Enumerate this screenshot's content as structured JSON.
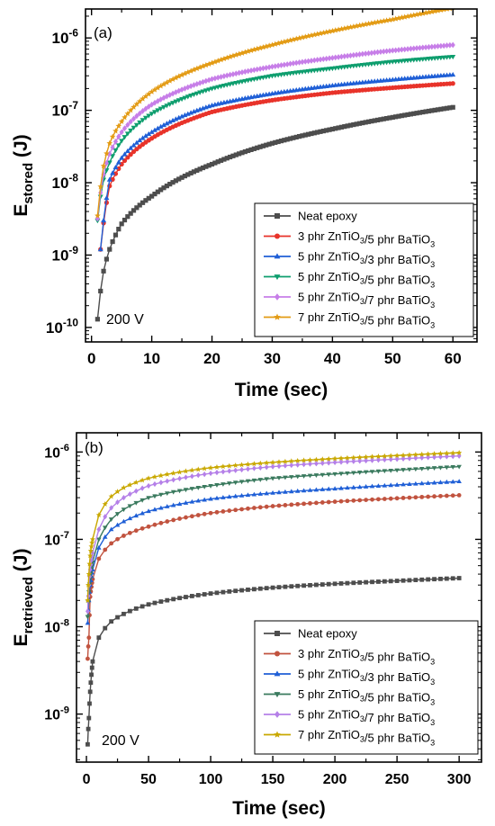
{
  "chart_data": [
    {
      "type": "line",
      "panel_label": "(a)",
      "annotation": "200 V",
      "xlabel": "Time (sec)",
      "ylabel": {
        "base": "E",
        "sub": "stored",
        "unit": " (J)"
      },
      "xlim": [
        -1,
        64
      ],
      "ylim_log10": [
        -10.2,
        -5.6
      ],
      "y_scale": "log",
      "xticks": [
        0,
        10,
        20,
        30,
        40,
        50,
        60
      ],
      "yticks": [
        {
          "exp": -10,
          "label": "10",
          "sup": "-10"
        },
        {
          "exp": -9,
          "label": "10",
          "sup": "-9"
        },
        {
          "exp": -8,
          "label": "10",
          "sup": "-8"
        },
        {
          "exp": -7,
          "label": "10",
          "sup": "-7"
        },
        {
          "exp": -6,
          "label": "10",
          "sup": "-6"
        }
      ],
      "legend_position": "bottom-right",
      "series": [
        {
          "name": "Neat epoxy",
          "color": "#4d4d4d",
          "marker": "square",
          "x": [
            1,
            2,
            3,
            5,
            10,
            20,
            30,
            40,
            50,
            60
          ],
          "y": [
            1.3e-10,
            6e-10,
            1.2e-09,
            2.7e-09,
            6.5e-09,
            1.8e-08,
            3.5e-08,
            5.5e-08,
            8e-08,
            1.1e-07
          ]
        },
        {
          "name": "3 phr ZnTiO3/5 phr BaTiO3",
          "color": "#e8332a",
          "marker": "circle",
          "x": [
            1.5,
            3,
            5,
            10,
            20,
            30,
            40,
            50,
            60
          ],
          "y": [
            1.2e-09,
            9e-09,
            1.8e-08,
            4.1e-08,
            9.5e-08,
            1.38e-07,
            1.75e-07,
            2.05e-07,
            2.35e-07
          ]
        },
        {
          "name": "5 phr ZnTiO3/3 phr BaTiO3",
          "color": "#1f5fd6",
          "marker": "triangle-up",
          "x": [
            1.5,
            3,
            5,
            10,
            20,
            30,
            40,
            50,
            60
          ],
          "y": [
            1.2e-09,
            1.1e-08,
            2.2e-08,
            5e-08,
            1.17e-07,
            1.7e-07,
            2.2e-07,
            2.65e-07,
            3.1e-07
          ]
        },
        {
          "name": "5 phr ZnTiO3/5 phr BaTiO3",
          "color": "#0e9e6e",
          "marker": "triangle-down",
          "x": [
            1,
            2,
            3,
            5,
            10,
            20,
            30,
            40,
            50,
            60
          ],
          "y": [
            3e-09,
            1.1e-08,
            1.9e-08,
            3.8e-08,
            9e-08,
            2e-07,
            3e-07,
            3.8e-07,
            4.7e-07,
            5.5e-07
          ]
        },
        {
          "name": "5 phr ZnTiO3/7 phr BaTiO3",
          "color": "#c77ee8",
          "marker": "diamond",
          "x": [
            1,
            2,
            3,
            5,
            10,
            20,
            30,
            40,
            50,
            60
          ],
          "y": [
            3.2e-09,
            1.3e-08,
            2.5e-08,
            5e-08,
            1.2e-07,
            2.7e-07,
            4e-07,
            5.3e-07,
            6.7e-07,
            8e-07
          ]
        },
        {
          "name": "7 phr ZnTiO3/5 phr BaTiO3",
          "color": "#e39b14",
          "marker": "star",
          "x": [
            1,
            2,
            3,
            5,
            10,
            20,
            30,
            40,
            50,
            60
          ],
          "y": [
            3.5e-09,
            1.7e-08,
            3.5e-08,
            7e-08,
            1.8e-07,
            4.5e-07,
            8e-07,
            1.25e-06,
            1.8e-06,
            2.6e-06
          ]
        }
      ]
    },
    {
      "type": "line",
      "panel_label": "(b)",
      "annotation": "200 V",
      "xlabel": "Time (sec)",
      "ylabel": {
        "base": "E",
        "sub": "retrieved",
        "unit": " (J)"
      },
      "xlim": [
        -8,
        318
      ],
      "ylim_log10": [
        -9.55,
        -5.78
      ],
      "y_scale": "log",
      "xticks": [
        0,
        50,
        100,
        150,
        200,
        250,
        300
      ],
      "yticks": [
        {
          "exp": -9,
          "label": "10",
          "sup": "-9"
        },
        {
          "exp": -8,
          "label": "10",
          "sup": "-8"
        },
        {
          "exp": -7,
          "label": "10",
          "sup": "-7"
        },
        {
          "exp": -6,
          "label": "10",
          "sup": "-6"
        }
      ],
      "legend_position": "bottom-right",
      "series": [
        {
          "name": "Neat epoxy",
          "color": "#4d4d4d",
          "marker": "square",
          "x": [
            1,
            2,
            3,
            5,
            10,
            20,
            30,
            50,
            100,
            150,
            200,
            250,
            300
          ],
          "y": [
            4.5e-10,
            9e-10,
            1.8e-09,
            4e-09,
            7.5e-09,
            1.15e-08,
            1.4e-08,
            1.8e-08,
            2.4e-08,
            2.8e-08,
            3.1e-08,
            3.35e-08,
            3.6e-08
          ]
        },
        {
          "name": "3 phr ZnTiO3/5 phr BaTiO3",
          "color": "#c1533f",
          "marker": "circle",
          "x": [
            1,
            2,
            3,
            5,
            10,
            20,
            30,
            50,
            100,
            150,
            200,
            250,
            300
          ],
          "y": [
            4.3e-09,
            7.5e-09,
            2.2e-08,
            3.5e-08,
            6e-08,
            9e-08,
            1.1e-07,
            1.4e-07,
            2e-07,
            2.4e-07,
            2.7e-07,
            2.95e-07,
            3.2e-07
          ]
        },
        {
          "name": "5 phr ZnTiO3/3 phr BaTiO3",
          "color": "#1f5fd6",
          "marker": "triangle-up",
          "x": [
            1,
            2,
            3,
            5,
            10,
            20,
            30,
            50,
            100,
            150,
            200,
            250,
            300
          ],
          "y": [
            1.1e-08,
            2e-08,
            3e-08,
            4.5e-08,
            8e-08,
            1.3e-07,
            1.6e-07,
            2.1e-07,
            2.9e-07,
            3.4e-07,
            3.8e-07,
            4.2e-07,
            4.6e-07
          ]
        },
        {
          "name": "5 phr ZnTiO3/5 phr BaTiO3",
          "color": "#3a7a5e",
          "marker": "triangle-down",
          "x": [
            1,
            2,
            3,
            5,
            10,
            20,
            30,
            50,
            100,
            150,
            200,
            250,
            300
          ],
          "y": [
            1.3e-08,
            2.5e-08,
            3.6e-08,
            5.5e-08,
            1e-07,
            1.7e-07,
            2.2e-07,
            3e-07,
            4.1e-07,
            5e-07,
            5.6e-07,
            6.2e-07,
            6.8e-07
          ]
        },
        {
          "name": "5 phr ZnTiO3/7 phr BaTiO3",
          "color": "#b580e8",
          "marker": "diamond",
          "x": [
            1,
            2,
            3,
            5,
            10,
            20,
            30,
            50,
            100,
            150,
            200,
            250,
            300
          ],
          "y": [
            1.5e-08,
            3e-08,
            4.5e-08,
            7e-08,
            1.3e-07,
            2.3e-07,
            3e-07,
            4.1e-07,
            5.7e-07,
            6.8e-07,
            7.6e-07,
            8.3e-07,
            9e-07
          ]
        },
        {
          "name": "7 phr ZnTiO3/5 phr BaTiO3",
          "color": "#c9a800",
          "marker": "star",
          "x": [
            1,
            2,
            3,
            5,
            10,
            20,
            30,
            50,
            100,
            150,
            200,
            250,
            300
          ],
          "y": [
            2e-08,
            4e-08,
            6.5e-08,
            1e-07,
            1.9e-07,
            3.1e-07,
            3.9e-07,
            5e-07,
            6.6e-07,
            7.6e-07,
            8.4e-07,
            9.1e-07,
            9.8e-07
          ]
        }
      ]
    }
  ]
}
